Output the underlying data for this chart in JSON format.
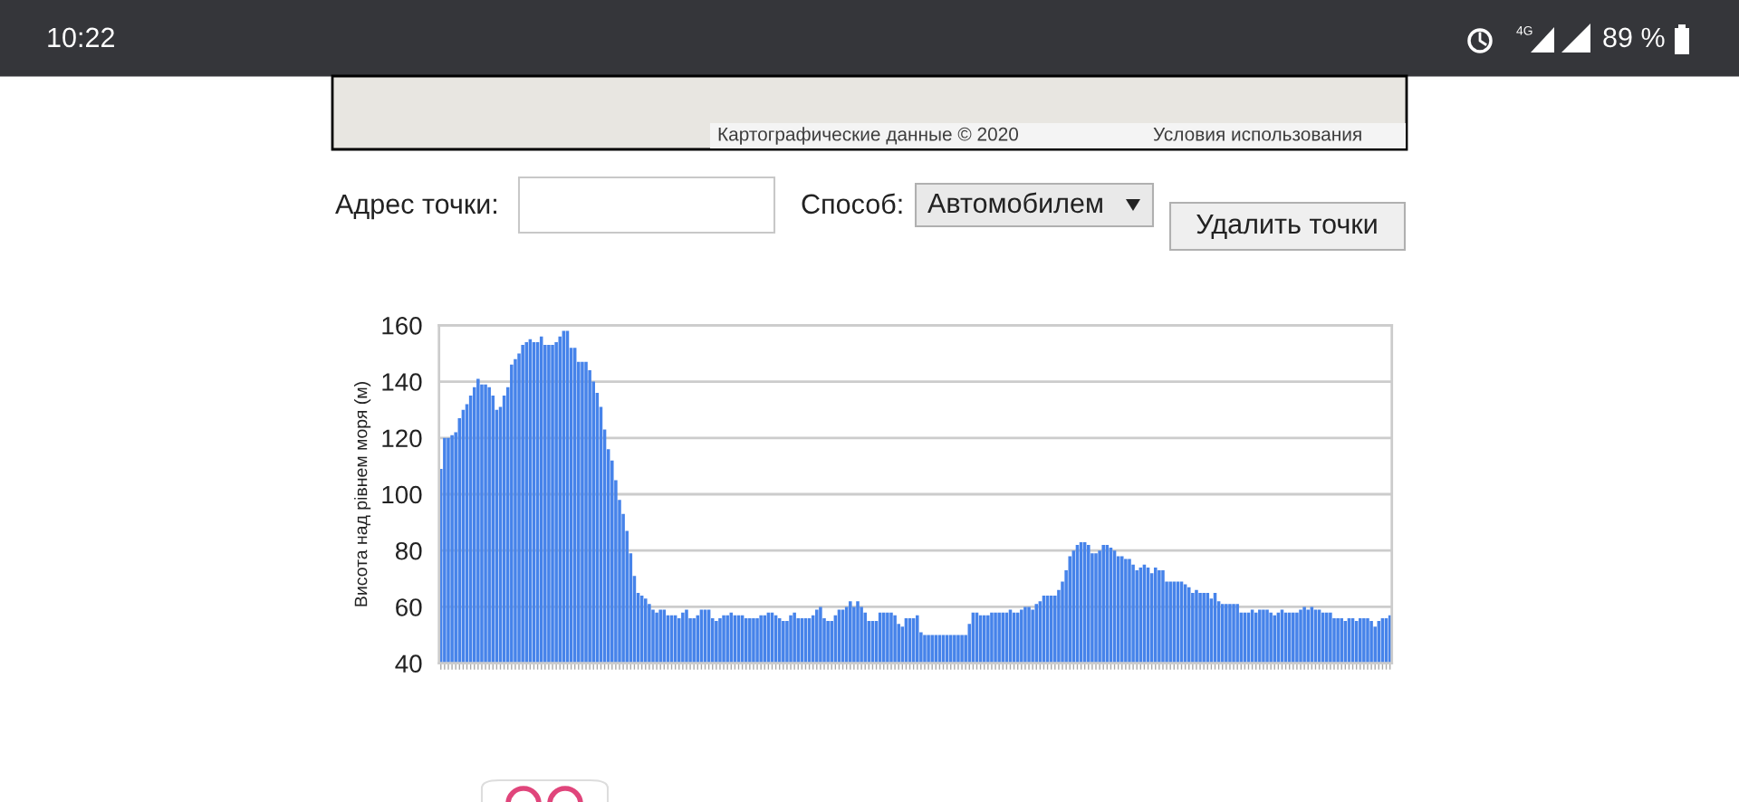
{
  "chart_data": {
    "type": "bar",
    "ylabel": "Висота над рівнем моря (м)",
    "color": "#4683ea",
    "categories": [
      null,
      null,
      null,
      null,
      null,
      null,
      null,
      null,
      null,
      null,
      null,
      null,
      null,
      null,
      null,
      null,
      null,
      null,
      null,
      null,
      null,
      null,
      null,
      null,
      null,
      null,
      null,
      null,
      null,
      null,
      null,
      null,
      null,
      null,
      null,
      null,
      null,
      null,
      null,
      null,
      null,
      null,
      null,
      null,
      null,
      null,
      null,
      null,
      null,
      null,
      null,
      null,
      null,
      null,
      null,
      null,
      null,
      null,
      null,
      null,
      null,
      null,
      null,
      null,
      null,
      null,
      null,
      null,
      null,
      null,
      null,
      null,
      null,
      null,
      null,
      null,
      null,
      null,
      null,
      null,
      null,
      null,
      null,
      null,
      null,
      null,
      null,
      null,
      null,
      null,
      null,
      null,
      null,
      null,
      null,
      null,
      null,
      null,
      null,
      null,
      null,
      null,
      null,
      null,
      null,
      null,
      null,
      null,
      null,
      null,
      null,
      null,
      null,
      null,
      null,
      null,
      null,
      null,
      null,
      null,
      null,
      null,
      null,
      null,
      null,
      null,
      null,
      null,
      null,
      null,
      null,
      null,
      null,
      null,
      null,
      null,
      null,
      null,
      null,
      null,
      null,
      null,
      null,
      null,
      null,
      null,
      null,
      null,
      null,
      null,
      null,
      null,
      null,
      null,
      null,
      null,
      null,
      null,
      null,
      null,
      null,
      null,
      null,
      null,
      null,
      null,
      null,
      null,
      null,
      null,
      null,
      null,
      null,
      null,
      null,
      null,
      null,
      null,
      null,
      null,
      null,
      null,
      null,
      null,
      null,
      null,
      null,
      null,
      null,
      null,
      null,
      null,
      null,
      null,
      null,
      null,
      null,
      null,
      null,
      null,
      null,
      null,
      null,
      null,
      null,
      null,
      null,
      null,
      null,
      null,
      null,
      null,
      null,
      null,
      null,
      null,
      null,
      null,
      null,
      null,
      null,
      null,
      null,
      null,
      null,
      null,
      null,
      null,
      null,
      null,
      null,
      null,
      null,
      null,
      null,
      null,
      null,
      null,
      null,
      null,
      null,
      null,
      null,
      null,
      null,
      null,
      null,
      null,
      null,
      null,
      null,
      null,
      null,
      null,
      null,
      null
    ],
    "values": [
      109,
      120,
      120,
      121,
      122,
      127,
      130,
      132,
      135,
      138,
      141,
      139,
      139,
      138,
      135,
      130,
      131,
      135,
      138,
      146,
      148,
      150,
      153,
      154,
      155,
      154,
      154,
      156,
      153,
      153,
      153,
      154,
      156,
      158,
      158,
      152,
      152,
      147,
      147,
      147,
      144,
      140,
      136,
      131,
      123,
      116,
      112,
      105,
      98,
      93,
      87,
      79,
      71,
      65,
      64,
      63,
      61,
      59,
      58,
      59,
      59,
      57,
      57,
      57,
      56,
      58,
      59,
      56,
      56,
      57,
      59,
      59,
      59,
      56,
      55,
      56,
      57,
      57,
      58,
      57,
      57,
      57,
      56,
      56,
      56,
      56,
      57,
      57,
      58,
      58,
      57,
      56,
      55,
      55,
      57,
      58,
      56,
      56,
      56,
      56,
      57,
      59,
      60,
      56,
      55,
      55,
      57,
      59,
      59,
      60,
      62,
      60,
      62,
      60,
      58,
      55,
      55,
      55,
      58,
      58,
      58,
      58,
      57,
      54,
      53,
      56,
      56,
      56,
      57,
      51,
      50,
      50,
      50,
      50,
      50,
      50,
      50,
      50,
      50,
      50,
      50,
      50,
      54,
      58,
      58,
      57,
      57,
      57,
      58,
      58,
      58,
      58,
      58,
      59,
      58,
      58,
      59,
      60,
      60,
      59,
      61,
      62,
      64,
      64,
      64,
      64,
      66,
      69,
      73,
      78,
      80,
      82,
      83,
      83,
      82,
      79,
      79,
      80,
      82,
      82,
      81,
      80,
      78,
      78,
      77,
      77,
      75,
      73,
      74,
      75,
      74,
      72,
      74,
      73,
      73,
      69,
      69,
      69,
      69,
      69,
      68,
      67,
      65,
      66,
      65,
      65,
      65,
      63,
      65,
      62,
      61,
      61,
      61,
      61,
      61,
      58,
      58,
      58,
      59,
      58,
      59,
      59,
      59,
      58,
      57,
      58,
      59,
      58,
      58,
      58,
      58,
      59,
      60,
      59,
      60,
      59,
      59,
      58,
      58,
      58,
      56,
      56,
      56,
      55,
      56,
      56,
      55,
      56,
      56,
      56,
      55,
      53,
      55,
      56,
      56,
      57
    ],
    "ylim": [
      40,
      160
    ],
    "yticks": [
      40,
      60,
      80,
      100,
      120,
      140,
      160
    ],
    "grid": "y",
    "tick_labels": "y",
    "annotations": [
      "10:22",
      "4G",
      "89 %",
      "Картографические данные © 2020",
      "Условия использования",
      "Адрес точки:",
      "Способ:",
      "Автомобилем",
      "Удалить точки"
    ]
  }
}
